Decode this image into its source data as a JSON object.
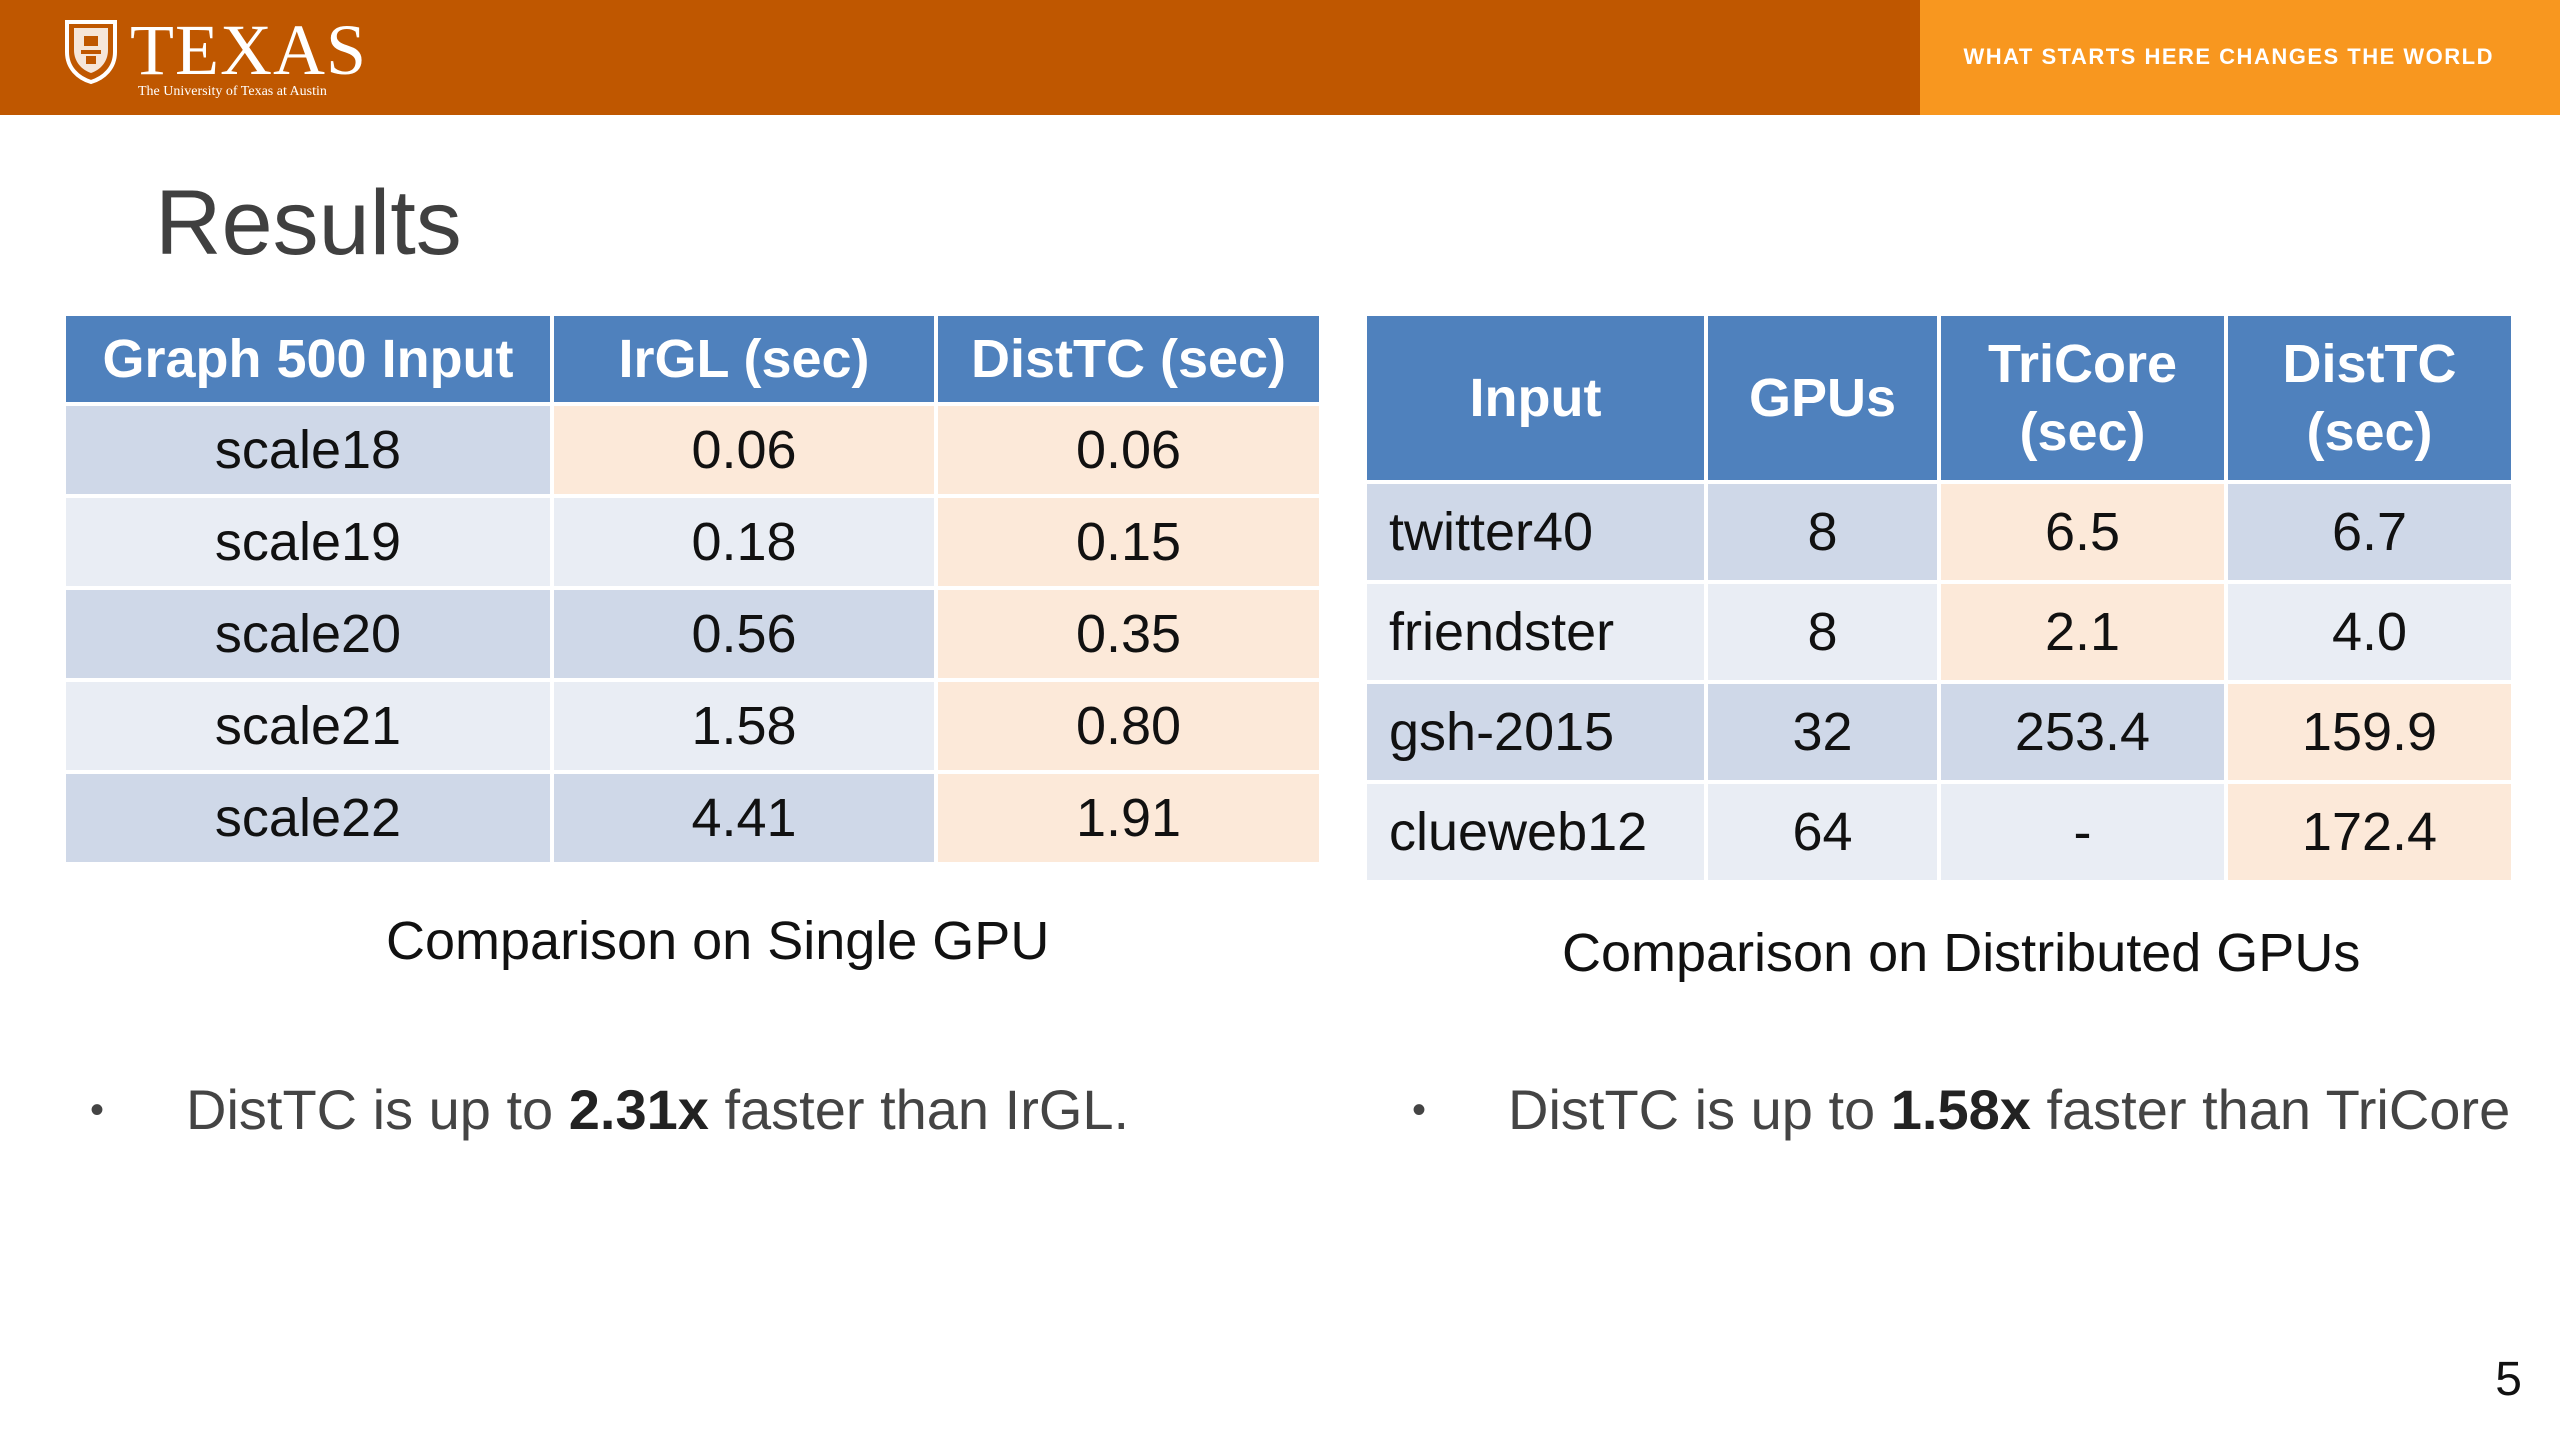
{
  "header": {
    "logo_word": "TEXAS",
    "logo_sub": "The University of Texas at Austin",
    "tagline": "WHAT STARTS HERE CHANGES THE WORLD",
    "colors": {
      "burnt_orange": "#BF5700",
      "light_orange": "#F8971F"
    }
  },
  "slide": {
    "title": "Results",
    "page_number": "5"
  },
  "single_gpu": {
    "headers": [
      "Graph 500 Input",
      "IrGL (sec)",
      "DistTC (sec)"
    ],
    "rows": [
      [
        "scale18",
        "0.06",
        "0.06"
      ],
      [
        "scale19",
        "0.18",
        "0.15"
      ],
      [
        "scale20",
        "0.56",
        "0.35"
      ],
      [
        "scale21",
        "1.58",
        "0.80"
      ],
      [
        "scale22",
        "4.41",
        "1.91"
      ]
    ],
    "caption": "Comparison on Single GPU"
  },
  "distributed": {
    "headers": [
      "Input",
      "GPUs",
      "TriCore (sec)",
      "DistTC (sec)"
    ],
    "header_lines": [
      [
        "Input"
      ],
      [
        "GPUs"
      ],
      [
        "TriCore",
        "(sec)"
      ],
      [
        "DistTC",
        "(sec)"
      ]
    ],
    "rows": [
      [
        "twitter40",
        "8",
        "6.5",
        "6.7"
      ],
      [
        "friendster",
        "8",
        "2.1",
        "4.0"
      ],
      [
        "gsh-2015",
        "32",
        "253.4",
        "159.9"
      ],
      [
        "clueweb12",
        "64",
        "-",
        "172.4"
      ]
    ],
    "caption": "Comparison on Distributed GPUs"
  },
  "bullets": [
    {
      "before": "DistTC is up to ",
      "bold": "2.31x",
      "after": " faster than IrGL."
    },
    {
      "before": "DistTC is up to ",
      "bold": "1.58x",
      "after": " faster than TriCore"
    }
  ]
}
